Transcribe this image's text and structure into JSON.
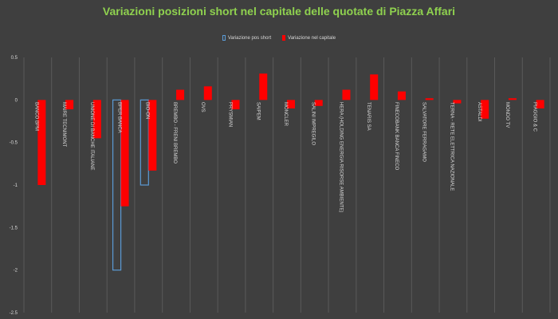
{
  "chart_data": {
    "type": "bar",
    "title": "Variazioni posizioni short nel capitale delle quotate di Piazza Affari",
    "xlabel": "",
    "ylabel": "",
    "ylim": [
      -2.5,
      0.5
    ],
    "yticks": [
      0.5,
      0,
      -0.5,
      -1,
      -1.5,
      -2,
      -2.5
    ],
    "legend_position": "top-center",
    "grid": "vertical",
    "categories": [
      "BANCO BPM",
      "MAIRE TECNIMONT",
      "UNIONE DI BANCHE ITALIANE",
      "BPER BANCA",
      "BIO-ON",
      "BREMBO - FRENI BREMBO",
      "OVS",
      "PRYSMIAN",
      "SAIPEM",
      "MONCLER",
      "SALINI IMPREGILO",
      "HERA (HOLDING ENERGIA RISORSE AMBIENTE)",
      "TENARIS SA",
      "FINECOBANK BANCA FINECO",
      "SALVATORE FERRAGAMO",
      "TERNA - RETE ELETTRICA NAZIONALE",
      "ASTALDI",
      "MONDO TV",
      "PIAGGIO & C"
    ],
    "series": [
      {
        "name": "Variazione pos short",
        "style": "outline",
        "color": "#5b9bd5",
        "values": [
          0,
          0,
          0,
          -2,
          -1,
          0,
          0,
          0,
          0,
          0,
          0,
          0,
          0,
          0,
          0,
          0,
          0,
          0,
          0
        ]
      },
      {
        "name": "Variazione nel capitale",
        "style": "fill",
        "color": "#ff0000",
        "values": [
          -1.0,
          -0.11,
          -0.45,
          -1.25,
          -0.83,
          0.12,
          0.16,
          -0.11,
          0.31,
          -0.1,
          -0.07,
          0.12,
          0.3,
          0.1,
          0.02,
          -0.04,
          -0.22,
          0.02,
          -0.1
        ]
      }
    ]
  },
  "colors": {
    "background": "#3f3f3f",
    "title": "#8fd14f",
    "text": "#d9d9d9",
    "grid": "#5a5a5a"
  }
}
